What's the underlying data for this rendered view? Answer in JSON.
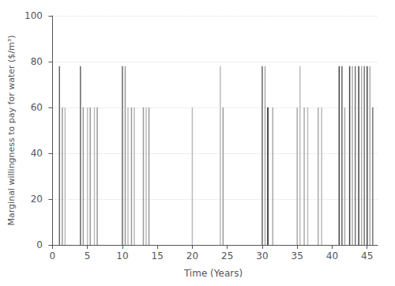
{
  "chart_data": {
    "type": "vlines",
    "xlabel": "Time (Years)",
    "ylabel": "Marginal willingness to pay for water ($/m³)",
    "x": [
      1.0,
      1.4,
      1.8,
      4.0,
      4.4,
      5.0,
      5.4,
      6.0,
      6.4,
      10.0,
      10.4,
      10.8,
      11.3,
      11.7,
      13.0,
      13.4,
      13.8,
      20.0,
      24.0,
      24.4,
      30.0,
      30.4,
      30.8,
      31.5,
      35.0,
      35.4,
      36.0,
      36.5,
      38.0,
      38.5,
      41.0,
      41.4,
      41.8,
      42.5,
      42.9,
      43.3,
      43.8,
      44.2,
      44.6,
      45.0,
      45.4,
      45.8
    ],
    "values": [
      78,
      60,
      60,
      78,
      60,
      60,
      60,
      60,
      60,
      78,
      78,
      60,
      60,
      60,
      60,
      60,
      60,
      60,
      78,
      60,
      78,
      78,
      60,
      60,
      60,
      78,
      60,
      60,
      60,
      60,
      78,
      78,
      60,
      78,
      78,
      78,
      78,
      78,
      78,
      78,
      78,
      60
    ],
    "colors": [
      "#666666",
      "#999999",
      "#bbbbbb",
      "#666666",
      "#999999",
      "#bbbbbb",
      "#999999",
      "#bbbbbb",
      "#999999",
      "#666666",
      "#999999",
      "#bbbbbb",
      "#999999",
      "#bbbbbb",
      "#999999",
      "#bbbbbb",
      "#999999",
      "#bbbbbb",
      "#bbbbbb",
      "#999999",
      "#666666",
      "#aaaaaa",
      "#111111",
      "#aaaaaa",
      "#aaaaaa",
      "#bbbbbb",
      "#aaaaaa",
      "#bbbbbb",
      "#aaaaaa",
      "#bbbbbb",
      "#444444",
      "#666666",
      "#aaaaaa",
      "#444444",
      "#aaaaaa",
      "#777777",
      "#444444",
      "#aaaaaa",
      "#777777",
      "#444444",
      "#aaaaaa",
      "#777777"
    ],
    "xlim": [
      -0.5,
      46.5
    ],
    "ylim": [
      0,
      100
    ],
    "xticks": [
      0,
      5,
      10,
      15,
      20,
      25,
      30,
      35,
      40,
      45
    ],
    "yticks": [
      0,
      20,
      40,
      60,
      80,
      100
    ],
    "grid": true
  }
}
